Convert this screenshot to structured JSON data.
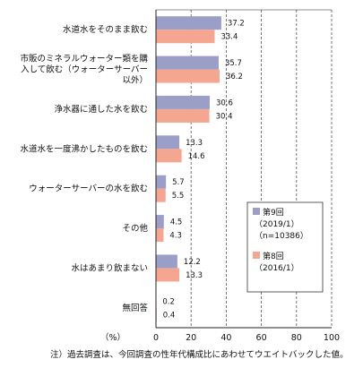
{
  "chart_data": {
    "type": "bar",
    "orientation": "horizontal",
    "categories": [
      [
        "水道水をそのまま飲む"
      ],
      [
        "市販のミネラルウォーター類を購",
        "入して飲む（ウォーターサーバー",
        "以外）"
      ],
      [
        "浄水器に通した水を飲む"
      ],
      [
        "水道水を一度沸かしたものを飲む"
      ],
      [
        "ウォーターサーバーの水を飲む"
      ],
      [
        "その他"
      ],
      [
        "水はあまり飲まない"
      ],
      [
        "無回答"
      ]
    ],
    "series": [
      {
        "name_lines": [
          "第9回",
          "（2019/1）",
          "（n=10386）"
        ],
        "color": "#9b9fc8",
        "values": [
          37.2,
          35.7,
          30.6,
          13.3,
          5.7,
          4.5,
          12.2,
          0.2
        ],
        "labels": [
          "37.2",
          "35.7",
          "30.6",
          "13.3",
          "5.7",
          "4.5",
          "12.2",
          "0.2"
        ]
      },
      {
        "name_lines": [
          "第8回",
          "（2016/1）"
        ],
        "color": "#f4a690",
        "values": [
          33.4,
          36.2,
          30.4,
          14.6,
          5.5,
          4.3,
          13.3,
          0.4
        ],
        "labels": [
          "33.4",
          "36.2",
          "30.4",
          "14.6",
          "5.5",
          "4.3",
          "13.3",
          "0.4"
        ]
      }
    ],
    "xlim": [
      0,
      100
    ],
    "xticks": [
      0,
      20,
      40,
      60,
      80,
      100
    ],
    "xlabel": "（%）",
    "grid": "vertical dashed",
    "legend_position": "right"
  },
  "footnote": "注）過去調査は、今回調査の性年代構成比にあわせてウエイトバックした値。"
}
